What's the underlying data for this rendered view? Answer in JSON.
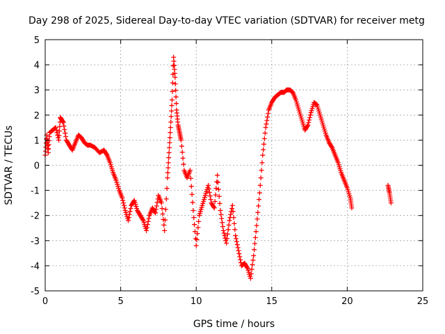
{
  "chart_data": {
    "type": "scatter",
    "title": "Day 298 of 2025, Sidereal Day-to-day VTEC variation (SDTVAR) for receiver metg",
    "xlabel": "GPS time / hours",
    "ylabel": "SDTVAR / TECUs",
    "xlim": [
      0,
      25
    ],
    "ylim": [
      -5,
      5
    ],
    "xticks": [
      "0",
      "5",
      "10",
      "15",
      "20",
      "25"
    ],
    "yticks": [
      "-5",
      "-4",
      "-3",
      "-2",
      "-1",
      "0",
      "1",
      "2",
      "3",
      "4",
      "5"
    ],
    "grid": true,
    "marker": "plus",
    "color": "#ff0000",
    "series": [
      {
        "name": "SDTVAR",
        "x": [
          0.0,
          0.1,
          0.2,
          0.3,
          0.5,
          0.7,
          0.9,
          1.0,
          1.1,
          1.2,
          1.4,
          1.6,
          1.8,
          2.0,
          2.2,
          2.4,
          2.6,
          2.8,
          3.0,
          3.3,
          3.6,
          3.9,
          4.1,
          4.3,
          4.5,
          4.7,
          4.9,
          5.1,
          5.3,
          5.5,
          5.7,
          5.9,
          6.1,
          6.3,
          6.5,
          6.7,
          6.9,
          7.1,
          7.3,
          7.5,
          7.7,
          7.9,
          8.1,
          8.2,
          8.3,
          8.4,
          8.5,
          8.6,
          8.7,
          8.8,
          8.9,
          9.0,
          9.2,
          9.4,
          9.6,
          9.8,
          10.0,
          10.2,
          10.4,
          10.6,
          10.8,
          11.0,
          11.2,
          11.4,
          11.6,
          11.8,
          12.0,
          12.2,
          12.4,
          12.6,
          12.8,
          13.0,
          13.2,
          13.4,
          13.6,
          13.8,
          14.0,
          14.2,
          14.4,
          14.6,
          14.8,
          15.0,
          15.2,
          15.4,
          15.6,
          15.8,
          16.0,
          16.2,
          16.4,
          16.6,
          16.8,
          17.0,
          17.2,
          17.4,
          17.6,
          17.8,
          18.0,
          18.2,
          18.4,
          18.6,
          18.8,
          19.0,
          19.2,
          19.4,
          19.6,
          19.8,
          20.0,
          20.2,
          20.3,
          22.7,
          22.8,
          22.9
        ],
        "y": [
          0.4,
          1.2,
          0.5,
          1.3,
          1.4,
          1.5,
          1.0,
          1.9,
          1.8,
          1.7,
          1.0,
          0.8,
          0.6,
          0.9,
          1.2,
          1.1,
          0.9,
          0.8,
          0.8,
          0.7,
          0.5,
          0.6,
          0.4,
          0.1,
          -0.3,
          -0.6,
          -1.0,
          -1.3,
          -1.8,
          -2.2,
          -1.6,
          -1.4,
          -1.8,
          -2.0,
          -2.2,
          -2.6,
          -2.0,
          -1.7,
          -1.9,
          -1.2,
          -1.5,
          -2.6,
          -0.5,
          0.5,
          1.5,
          2.6,
          4.3,
          3.5,
          2.2,
          1.6,
          1.3,
          1.0,
          -0.2,
          -0.5,
          -0.2,
          -1.8,
          -3.2,
          -2.0,
          -1.6,
          -1.2,
          -0.8,
          -1.5,
          -1.7,
          -0.4,
          -1.8,
          -2.6,
          -3.1,
          -2.2,
          -1.6,
          -2.8,
          -3.4,
          -4.0,
          -3.9,
          -4.1,
          -4.5,
          -3.6,
          -2.4,
          -1.1,
          0.4,
          1.5,
          2.2,
          2.5,
          2.7,
          2.8,
          2.9,
          2.9,
          3.0,
          3.0,
          2.9,
          2.6,
          2.2,
          1.8,
          1.4,
          1.6,
          2.1,
          2.5,
          2.4,
          2.0,
          1.6,
          1.2,
          0.9,
          0.7,
          0.4,
          0.1,
          -0.3,
          -0.6,
          -0.9,
          -1.3,
          -1.7,
          -0.8,
          -1.1,
          -1.5
        ]
      }
    ]
  }
}
